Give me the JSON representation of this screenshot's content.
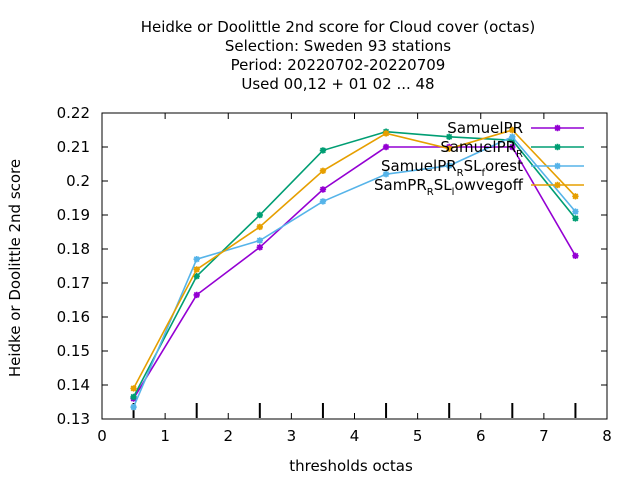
{
  "chart_data": {
    "type": "line",
    "title_lines": [
      "Heidke or Doolittle 2nd score  for Cloud cover (octas)",
      "Selection: Sweden     93 stations",
      "Period: 20220702-20220709",
      "Used  00,12  + 01 02 ... 48"
    ],
    "xlabel": "thresholds octas",
    "ylabel": "Heidke or Doolittle 2nd score",
    "xlim": [
      0,
      8
    ],
    "ylim": [
      0.13,
      0.22
    ],
    "x_ticks": [
      "0",
      "1",
      "2",
      "3",
      "4",
      "5",
      "6",
      "7",
      "8"
    ],
    "y_ticks": [
      "0.13",
      "0.14",
      "0.15",
      "0.16",
      "0.17",
      "0.18",
      "0.19",
      "0.2",
      "0.21",
      "0.22"
    ],
    "x": [
      0.5,
      1.5,
      2.5,
      3.5,
      4.5,
      5.5,
      6.5,
      7.5
    ],
    "grid": false,
    "legend_position": "top-right",
    "series": [
      {
        "name": "SamuelPR",
        "name_parts": [
          [
            "SamuelPR",
            ""
          ]
        ],
        "color": "#9400d3",
        "values": [
          0.136,
          0.1665,
          0.1805,
          0.1975,
          0.21,
          0.21,
          0.21,
          0.178
        ]
      },
      {
        "name": "SamuelPR_R",
        "name_parts": [
          [
            "SamuelPR",
            ""
          ],
          [
            "R",
            "sub"
          ]
        ],
        "color": "#009e73",
        "values": [
          0.1365,
          0.172,
          0.19,
          0.209,
          0.2145,
          0.213,
          0.212,
          0.189
        ]
      },
      {
        "name": "SamuelPR_RSL_forest",
        "name_parts": [
          [
            "SamuelPR",
            ""
          ],
          [
            "R",
            "sub"
          ],
          [
            "SL",
            ""
          ],
          [
            "f",
            "sub"
          ],
          [
            "orest",
            ""
          ]
        ],
        "color": "#56b4e9",
        "values": [
          0.1335,
          0.177,
          0.1825,
          0.194,
          0.202,
          0.2045,
          0.213,
          0.191
        ]
      },
      {
        "name": "SamPR_RSL_lowvegoff",
        "name_parts": [
          [
            "SamPR",
            ""
          ],
          [
            "R",
            "sub"
          ],
          [
            "SL",
            ""
          ],
          [
            "l",
            "sub"
          ],
          [
            "owvegoff",
            ""
          ]
        ],
        "color": "#e69f00",
        "values": [
          0.139,
          0.174,
          0.1865,
          0.203,
          0.214,
          0.2095,
          0.215,
          0.1955
        ]
      }
    ],
    "bottom_tick_marks_x": [
      0.5,
      1.5,
      2.5,
      3.5,
      4.5,
      5.5,
      6.5,
      7.5
    ]
  }
}
